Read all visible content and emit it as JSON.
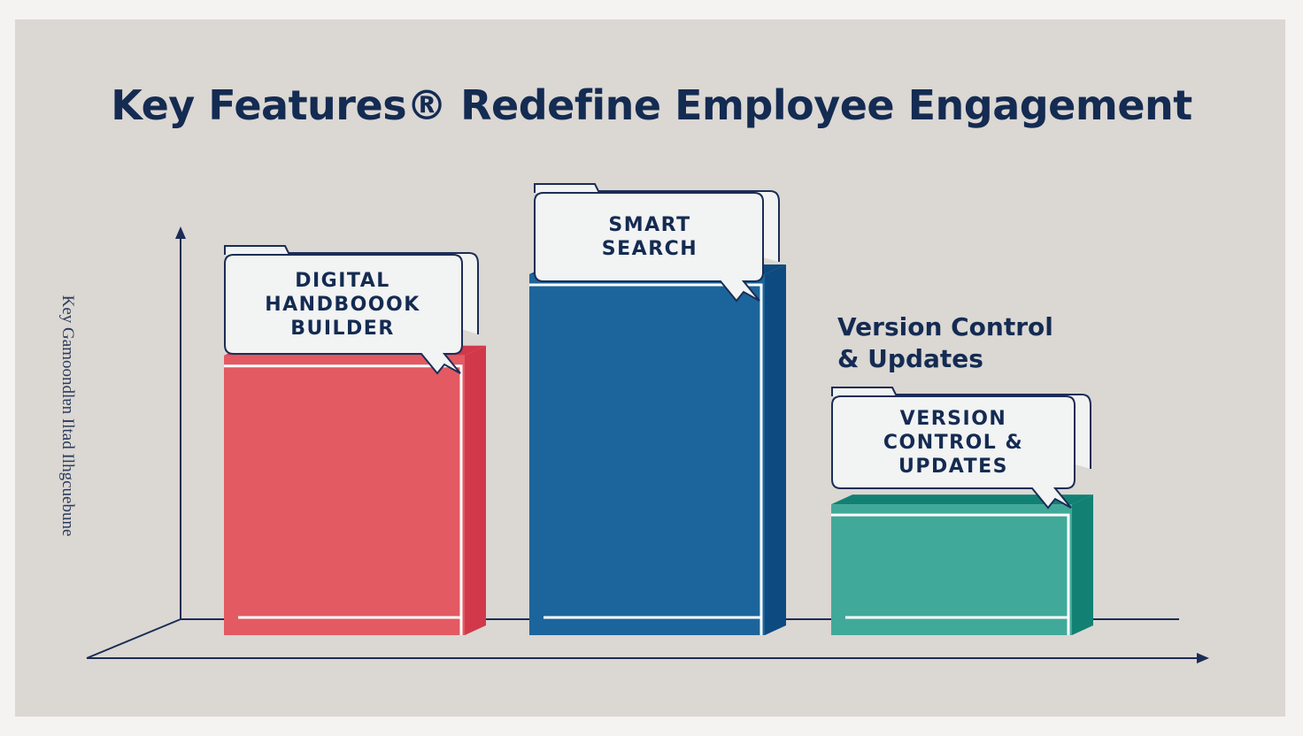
{
  "chart_data": {
    "type": "bar",
    "title": "Key Features® Redefine  Employee Engagement",
    "ylabel": "Key Gamoondlɐn Iltad Ilhgcuebune",
    "xlabel": "",
    "categories": [
      "DIGITAL HANDBOOOK BUILDER",
      "SMART SEARCH",
      "VERSION CONTROL & UPDATES"
    ],
    "values": [
      6.2,
      8.0,
      2.9
    ],
    "ylim": [
      0,
      10
    ],
    "colors": [
      "#e35a62",
      "#1c649c",
      "#41a99a"
    ],
    "side_colors": [
      "#d1394a",
      "#0d4a80",
      "#128173"
    ],
    "annotation": "Version Control\n& Updates",
    "grid": false
  }
}
